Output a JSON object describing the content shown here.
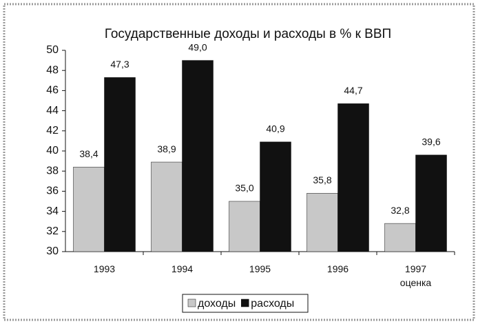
{
  "chart_data": {
    "type": "bar",
    "title": "Государственные доходы и расходы в % к ВВП",
    "categories": [
      "1993",
      "1994",
      "1995",
      "1996",
      "1997\nоценка"
    ],
    "series": [
      {
        "name": "доходы",
        "color": "#c8c8c8",
        "values": [
          38.4,
          38.9,
          35.0,
          35.8,
          32.8
        ],
        "value_labels": [
          "38,4",
          "38,9",
          "35,0",
          "35,8",
          "32,8"
        ]
      },
      {
        "name": "расходы",
        "color": "#111111",
        "values": [
          47.3,
          49.0,
          40.9,
          44.7,
          39.6
        ],
        "value_labels": [
          "47,3",
          "49,0",
          "40,9",
          "44,7",
          "39,6"
        ]
      }
    ],
    "ylim": [
      30,
      50
    ],
    "yticks": [
      30,
      32,
      34,
      36,
      38,
      40,
      42,
      44,
      46,
      48,
      50
    ],
    "grid": false,
    "legend": "bottom"
  }
}
